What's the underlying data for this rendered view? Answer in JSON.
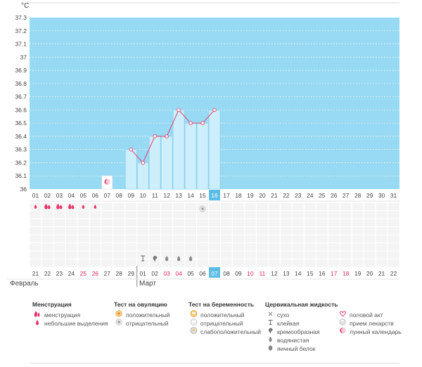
{
  "chart_data": {
    "type": "bar",
    "unit": "°C",
    "ylim": [
      36,
      37.3
    ],
    "y_ticks": [
      "36",
      "36.1",
      "36.2",
      "36.3",
      "36.4",
      "36.5",
      "36.6",
      "36.7",
      "36.8",
      "36.9",
      "37",
      "37.1",
      "37.2",
      "37.3"
    ],
    "cycle_days": [
      "01",
      "02",
      "03",
      "04",
      "05",
      "06",
      "07",
      "08",
      "09",
      "10",
      "11",
      "12",
      "13",
      "14",
      "15",
      "16",
      "17",
      "18",
      "19",
      "20",
      "21",
      "22",
      "23",
      "24",
      "25",
      "26",
      "27",
      "28",
      "29",
      "30",
      "31"
    ],
    "current_day": "16",
    "temperatures": [
      {
        "day": "09",
        "value": 36.3
      },
      {
        "day": "10",
        "value": 36.2
      },
      {
        "day": "11",
        "value": 36.4
      },
      {
        "day": "12",
        "value": 36.4
      },
      {
        "day": "13",
        "value": 36.6
      },
      {
        "day": "14",
        "value": 36.5
      },
      {
        "day": "15",
        "value": 36.5
      },
      {
        "day": "16",
        "value": 36.6
      }
    ],
    "markers": {
      "lunar_calendar_day": "07",
      "menstruation_days": [
        "02",
        "03",
        "04"
      ],
      "light_discharge_days": [
        "01",
        "05",
        "06"
      ],
      "ovulation_test_negative_day": "15",
      "cervical_fluid": [
        {
          "day": "10",
          "type": "sticky"
        },
        {
          "day": "11",
          "type": "creamy"
        },
        {
          "day": "12",
          "type": "watery"
        },
        {
          "day": "13",
          "type": "watery"
        },
        {
          "day": "14",
          "type": "watery"
        }
      ]
    },
    "dates": [
      "21",
      "22",
      "23",
      "24",
      "25",
      "26",
      "27",
      "28",
      "29",
      "01",
      "02",
      "03",
      "04",
      "05",
      "06",
      "07",
      "08",
      "09",
      "10",
      "11",
      "12",
      "13",
      "14",
      "15",
      "16",
      "17",
      "18",
      "19",
      "20",
      "21",
      "22"
    ],
    "weekend_dates_idx": [
      4,
      5,
      11,
      12,
      18,
      19,
      25,
      26
    ],
    "today_date_idx": 15,
    "months": [
      {
        "label": "Февраль",
        "start_idx": 0
      },
      {
        "label": "Март",
        "start_idx": 9
      }
    ]
  },
  "legend": {
    "menstruation": {
      "title": "Менструация",
      "items": [
        "менструация",
        "небольшие выделения"
      ]
    },
    "ovulation_test": {
      "title": "Тест на овуляцию",
      "items": [
        "положительный",
        "отрицательный"
      ]
    },
    "pregnancy_test": {
      "title": "Тест на беременность",
      "items": [
        "положительный",
        "отрицательный",
        "слабоположительный"
      ]
    },
    "cervical_fluid": {
      "title": "Цервикальная жидкость",
      "items": [
        "сухо",
        "клейкая",
        "кремообразная",
        "водянистая",
        "яичный белок"
      ]
    },
    "other": {
      "items": [
        "половой акт",
        "прием лекарств",
        "лунный календарь"
      ]
    }
  },
  "colors": {
    "plot_bg": "#98daf3",
    "bar_fill": "#cdeefb",
    "bar_stroke": "#7fcbea",
    "line": "#e0406e",
    "weekend_text": "#e0255a",
    "today_bg": "#5bbde6",
    "drop": "#e8356b"
  }
}
